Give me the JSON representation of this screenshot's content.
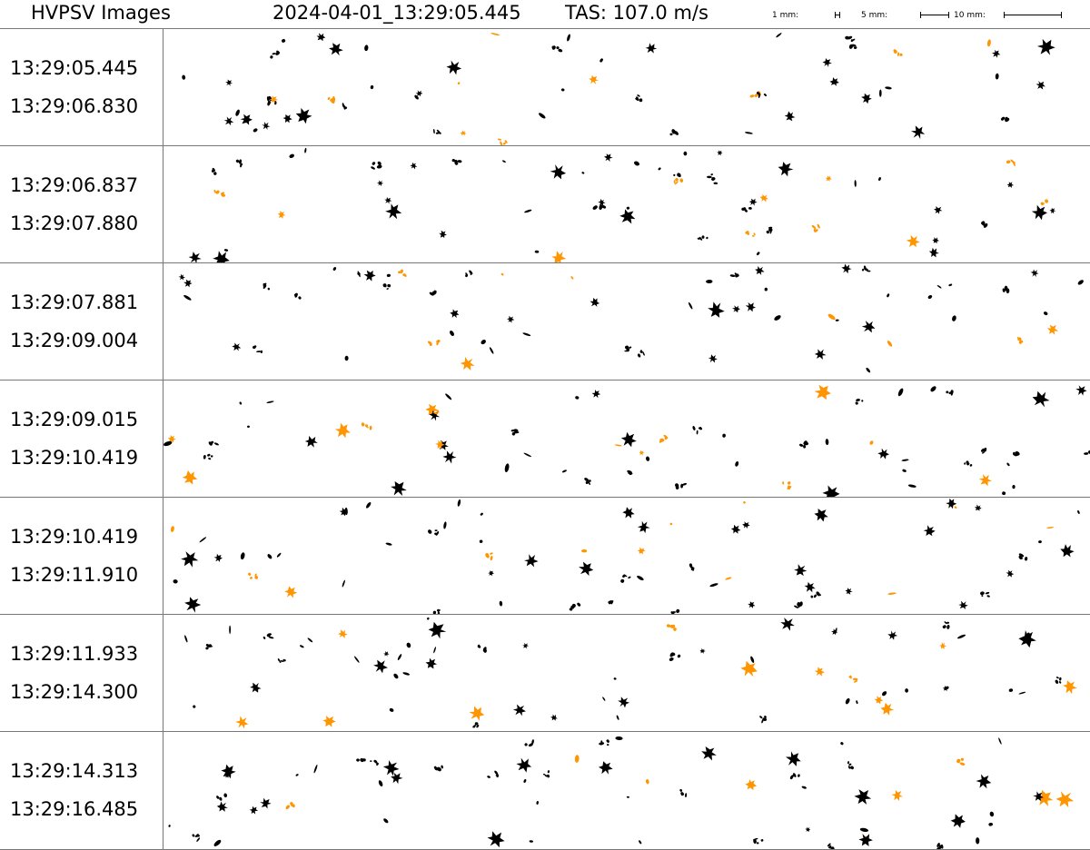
{
  "header": {
    "title": "HVPSV Images",
    "timestamp": "2024-04-01_13:29:05.445",
    "tas": "TAS: 107.0 m/s",
    "scale": [
      {
        "label": "1 mm:"
      },
      {
        "label": "5 mm:"
      },
      {
        "label": "10 mm:"
      }
    ]
  },
  "panels": [
    {
      "start": "13:29:05.445",
      "end": "13:29:06.830"
    },
    {
      "start": "13:29:06.837",
      "end": "13:29:07.880"
    },
    {
      "start": "13:29:07.881",
      "end": "13:29:09.004"
    },
    {
      "start": "13:29:09.015",
      "end": "13:29:10.419"
    },
    {
      "start": "13:29:10.419",
      "end": "13:29:11.910"
    },
    {
      "start": "13:29:11.933",
      "end": "13:29:14.300"
    },
    {
      "start": "13:29:14.313",
      "end": "13:29:16.485"
    }
  ],
  "colors": {
    "ice": "#000000",
    "highlighted": "#ff9500",
    "edge": "#ff0000",
    "divider": "#777777"
  }
}
